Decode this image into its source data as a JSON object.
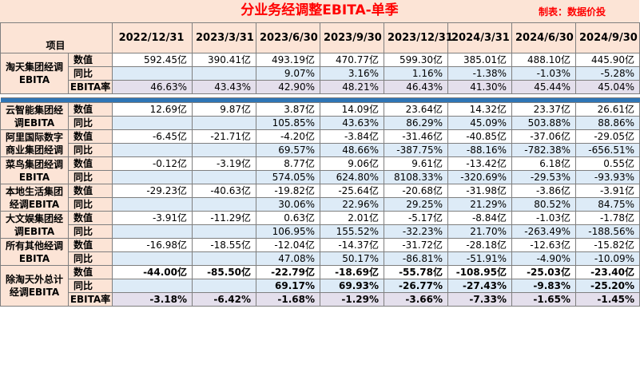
{
  "title": "分业务经调整EBITA-单季",
  "source": "制表：数据价投",
  "corner_label": "项目",
  "columns": [
    "2022/12/31",
    "2023/3/31",
    "2023/6/30",
    "2023/9/30",
    "2023/12/31",
    "2024/3/31",
    "2024/6/30",
    "2024/9/30"
  ],
  "top_group": {
    "segment": "淘天集团经调EBITA",
    "rows": [
      {
        "label": "数值",
        "style": "value",
        "values": [
          "592.45亿",
          "390.41亿",
          "493.19亿",
          "470.77亿",
          "599.30亿",
          "385.01亿",
          "488.10亿",
          "445.90亿"
        ]
      },
      {
        "label": "同比",
        "style": "yoy",
        "values": [
          "",
          "",
          "9.07%",
          "3.16%",
          "1.16%",
          "-1.38%",
          "-1.03%",
          "-5.28%"
        ]
      },
      {
        "label": "EBITA率",
        "style": "rate",
        "values": [
          "46.63%",
          "43.43%",
          "42.90%",
          "48.21%",
          "46.43%",
          "41.30%",
          "45.44%",
          "45.04%"
        ]
      }
    ]
  },
  "groups": [
    {
      "segment": "云智能集团经调EBITA",
      "rows": [
        {
          "label": "数值",
          "style": "value",
          "values": [
            "12.69亿",
            "9.87亿",
            "3.87亿",
            "14.09亿",
            "23.64亿",
            "14.32亿",
            "23.37亿",
            "26.61亿"
          ]
        },
        {
          "label": "同比",
          "style": "yoy",
          "values": [
            "",
            "",
            "105.85%",
            "43.63%",
            "86.29%",
            "45.09%",
            "503.88%",
            "88.86%"
          ]
        }
      ]
    },
    {
      "segment": "阿里国际数字商业集团经调",
      "rows": [
        {
          "label": "数值",
          "style": "value",
          "values": [
            "-6.45亿",
            "-21.71亿",
            "-4.20亿",
            "-3.84亿",
            "-31.46亿",
            "-40.85亿",
            "-37.06亿",
            "-29.05亿"
          ]
        },
        {
          "label": "同比",
          "style": "yoy",
          "values": [
            "",
            "",
            "69.57%",
            "48.66%",
            "-387.75%",
            "-88.16%",
            "-782.38%",
            "-656.51%"
          ]
        }
      ]
    },
    {
      "segment": "菜鸟集团经调EBITA",
      "rows": [
        {
          "label": "数值",
          "style": "value",
          "values": [
            "-0.12亿",
            "-3.19亿",
            "8.77亿",
            "9.06亿",
            "9.61亿",
            "-13.42亿",
            "6.18亿",
            "0.55亿"
          ]
        },
        {
          "label": "同比",
          "style": "yoy",
          "values": [
            "",
            "",
            "574.05%",
            "624.80%",
            "8108.33%",
            "-320.69%",
            "-29.53%",
            "-93.93%"
          ]
        }
      ]
    },
    {
      "segment": "本地生活集团经调EBITA",
      "rows": [
        {
          "label": "数值",
          "style": "value",
          "values": [
            "-29.23亿",
            "-40.63亿",
            "-19.82亿",
            "-25.64亿",
            "-20.68亿",
            "-31.98亿",
            "-3.86亿",
            "-3.91亿"
          ]
        },
        {
          "label": "同比",
          "style": "yoy",
          "values": [
            "",
            "",
            "30.06%",
            "22.96%",
            "29.25%",
            "21.29%",
            "80.52%",
            "84.75%"
          ]
        }
      ]
    },
    {
      "segment": "大文娱集团经调EBITA",
      "rows": [
        {
          "label": "数值",
          "style": "value",
          "values": [
            "-3.91亿",
            "-11.29亿",
            "0.63亿",
            "2.01亿",
            "-5.17亿",
            "-8.84亿",
            "-1.03亿",
            "-1.78亿"
          ]
        },
        {
          "label": "同比",
          "style": "yoy",
          "values": [
            "",
            "",
            "106.95%",
            "155.52%",
            "-32.23%",
            "21.70%",
            "-263.49%",
            "-188.56%"
          ]
        }
      ]
    },
    {
      "segment": "所有其他经调EBITA",
      "rows": [
        {
          "label": "数值",
          "style": "value",
          "values": [
            "-16.98亿",
            "-18.55亿",
            "-12.04亿",
            "-14.37亿",
            "-31.72亿",
            "-28.18亿",
            "-12.63亿",
            "-15.82亿"
          ]
        },
        {
          "label": "同比",
          "style": "yoy",
          "values": [
            "",
            "",
            "47.08%",
            "50.17%",
            "-86.81%",
            "-51.91%",
            "-4.90%",
            "-10.09%"
          ]
        }
      ]
    },
    {
      "segment": "除淘天外总计经调EBITA",
      "bold": true,
      "rows": [
        {
          "label": "数值",
          "style": "value",
          "values": [
            "-44.00亿",
            "-85.50亿",
            "-22.79亿",
            "-18.69亿",
            "-55.78亿",
            "-108.95亿",
            "-25.03亿",
            "-23.40亿"
          ]
        },
        {
          "label": "同比",
          "style": "yoy",
          "values": [
            "",
            "",
            "69.17%",
            "69.93%",
            "-26.77%",
            "-27.43%",
            "-9.83%",
            "-25.20%"
          ]
        },
        {
          "label": "EBITA率",
          "style": "rate",
          "values": [
            "-3.18%",
            "-6.42%",
            "-1.68%",
            "-1.29%",
            "-3.66%",
            "-7.33%",
            "-1.65%",
            "-1.45%"
          ]
        }
      ]
    }
  ]
}
